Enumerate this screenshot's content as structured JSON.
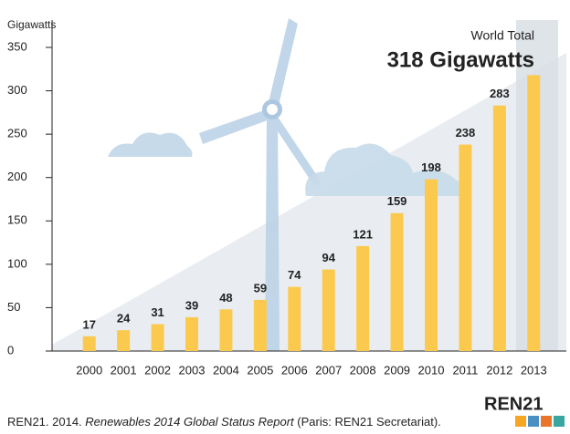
{
  "chart_data": {
    "type": "bar",
    "y_label": "Gigawatts",
    "categories": [
      "2000",
      "2001",
      "2002",
      "2003",
      "2004",
      "2005",
      "2006",
      "2007",
      "2008",
      "2009",
      "2010",
      "2011",
      "2012",
      "2013"
    ],
    "values": [
      17,
      24,
      31,
      39,
      48,
      59,
      74,
      94,
      121,
      159,
      198,
      238,
      283,
      318
    ],
    "value_labels": [
      "17",
      "24",
      "31",
      "39",
      "48",
      "59",
      "74",
      "94",
      "121",
      "159",
      "198",
      "238",
      "283",
      "318 Gigawatts"
    ],
    "color": "#fcc94f",
    "ylim": [
      0,
      350
    ],
    "yticks": [
      0,
      50,
      100,
      150,
      200,
      250,
      300,
      350
    ],
    "annotation": "World Total",
    "source": [
      "REN21. 2014. ",
      "Renewables 2014 Global Status Report",
      " (Paris: REN21 Secretariat)."
    ],
    "logo": "REN21"
  }
}
